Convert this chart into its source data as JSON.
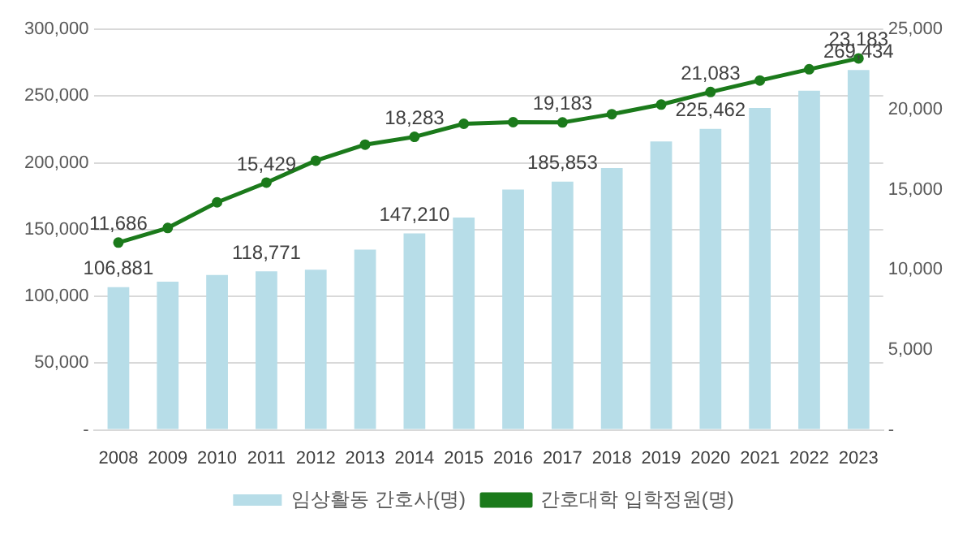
{
  "chart_data": {
    "type": "bar",
    "categories": [
      "2008",
      "2009",
      "2010",
      "2011",
      "2012",
      "2013",
      "2014",
      "2015",
      "2016",
      "2017",
      "2018",
      "2019",
      "2020",
      "2021",
      "2022",
      "2023"
    ],
    "series": [
      {
        "name": "임상활동 간호사(명)",
        "color": "#b7dde8",
        "values": [
          106881,
          111000,
          116000,
          118771,
          120000,
          135000,
          147210,
          159000,
          180000,
          185853,
          196000,
          216000,
          225462,
          241000,
          254000,
          269434
        ],
        "value_labels": [
          "106,881",
          null,
          null,
          "118,771",
          null,
          null,
          "147,210",
          null,
          null,
          "185,853",
          null,
          null,
          "225,462",
          null,
          null,
          "269,434"
        ]
      },
      {
        "name": "간호대학 입학정원(명)",
        "type": "line",
        "axis": "y2",
        "color": "#1b7a1b",
        "values": [
          11686,
          12600,
          14200,
          15429,
          16800,
          17800,
          18283,
          19100,
          19200,
          19183,
          19700,
          20300,
          21083,
          21800,
          22500,
          23183
        ],
        "value_labels": [
          "11,686",
          null,
          null,
          "15,429",
          null,
          null,
          "18,283",
          null,
          null,
          "19,183",
          null,
          null,
          "21,083",
          null,
          null,
          "23,183"
        ]
      }
    ],
    "ylim": [
      0,
      300000
    ],
    "yticks": [
      {
        "value": 0,
        "label": "-"
      },
      {
        "value": 50000,
        "label": "50,000"
      },
      {
        "value": 100000,
        "label": "100,000"
      },
      {
        "value": 150000,
        "label": "150,000"
      },
      {
        "value": 200000,
        "label": "200,000"
      },
      {
        "value": 250000,
        "label": "250,000"
      },
      {
        "value": 300000,
        "label": "300,000"
      }
    ],
    "y2lim": [
      0,
      25000
    ],
    "y2ticks": [
      {
        "value": 0,
        "label": "-"
      },
      {
        "value": 5000,
        "label": "5,000"
      },
      {
        "value": 10000,
        "label": "10,000"
      },
      {
        "value": 15000,
        "label": "15,000"
      },
      {
        "value": 20000,
        "label": "20,000"
      },
      {
        "value": 25000,
        "label": "25,000"
      }
    ],
    "grid": "y",
    "legend": "bottom",
    "marker": "circle",
    "line_style": "solid"
  }
}
